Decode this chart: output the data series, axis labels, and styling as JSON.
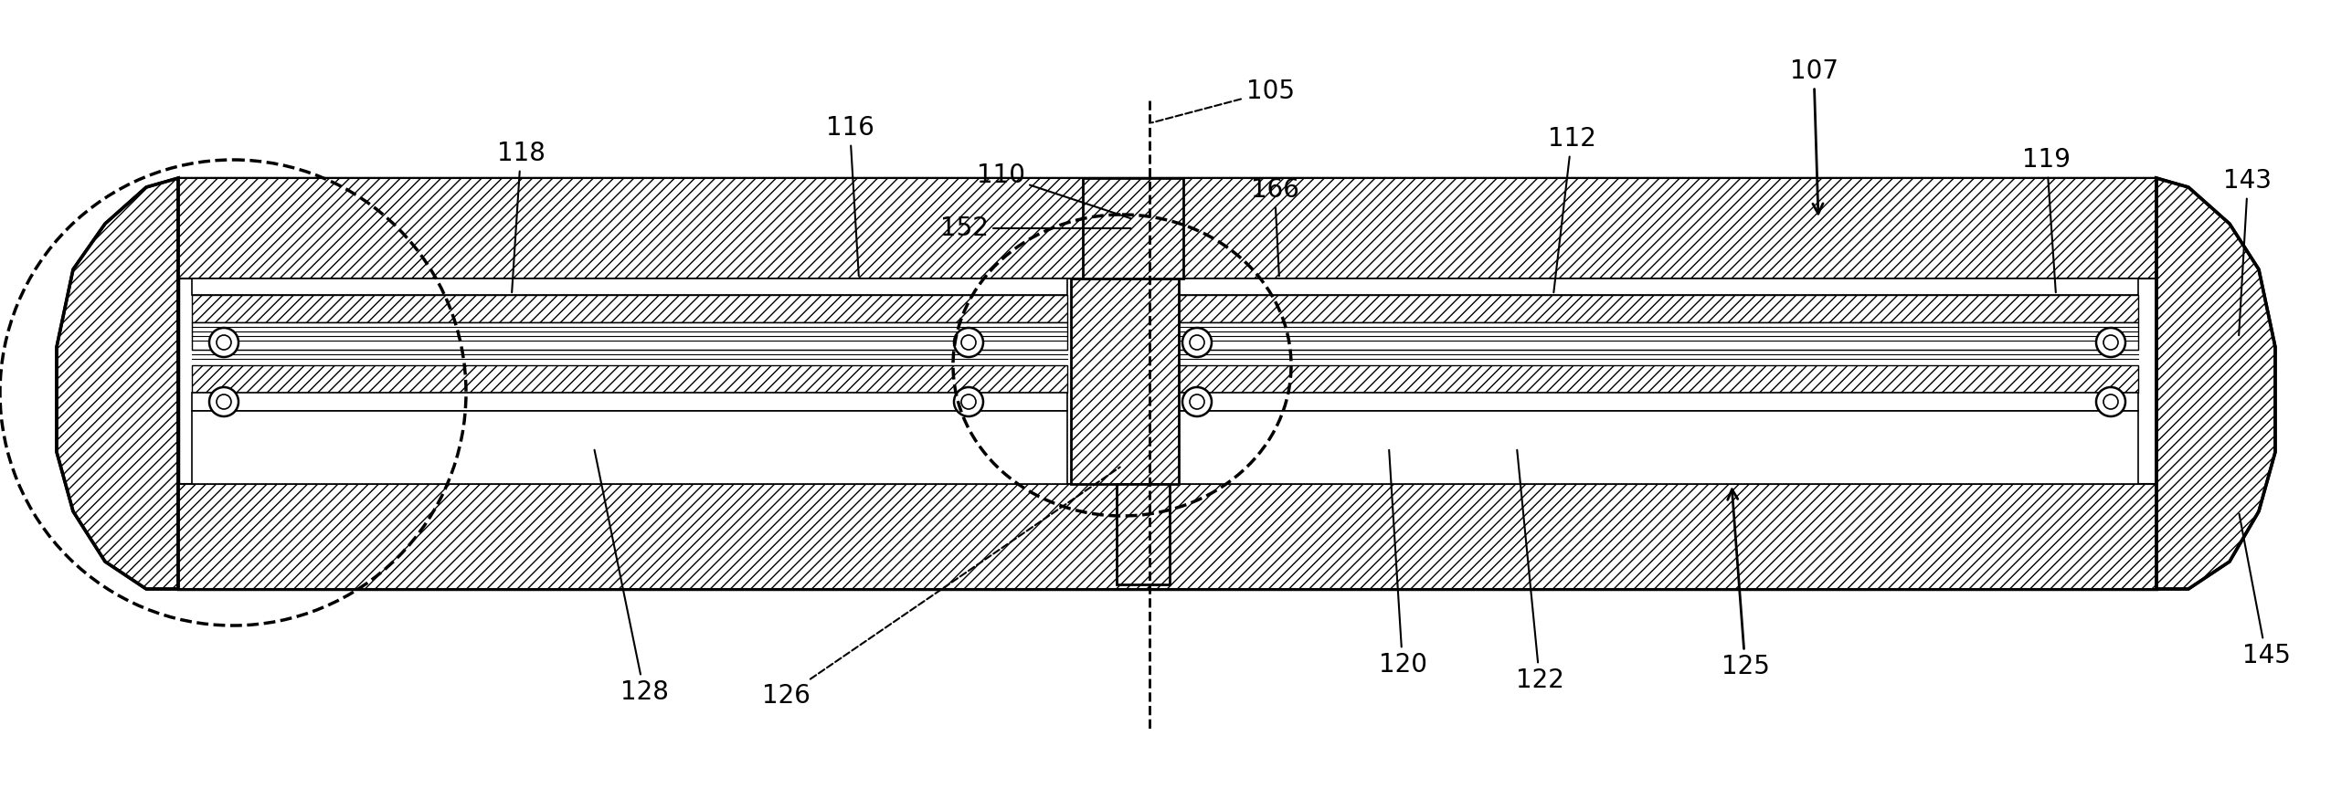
{
  "bg_color": "#ffffff",
  "line_color": "#000000"
}
